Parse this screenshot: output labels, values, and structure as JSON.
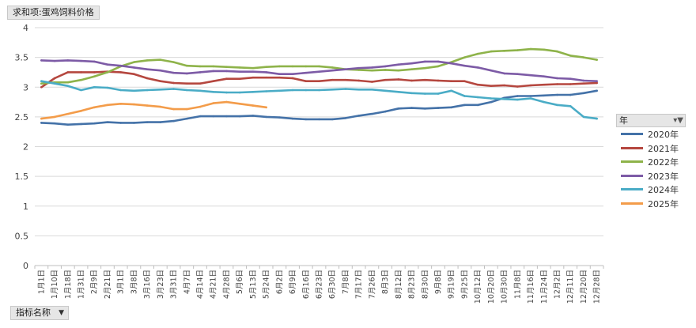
{
  "pivot": {
    "value_field": "求和项:蛋鸡饲料价格",
    "row_field": "指标名称",
    "row_field_dropdown": "▼",
    "legend_title": "年",
    "legend_filter_icon": "filter-dropdown-icon",
    "legend_filter_glyph": "▾▼"
  },
  "chart_data": {
    "type": "line",
    "title": "",
    "xlabel": "",
    "ylabel": "",
    "ylim": [
      0,
      4
    ],
    "yticks": [
      "0",
      "0.5",
      "1",
      "1.5",
      "2",
      "2.5",
      "3",
      "3.5",
      "4"
    ],
    "grid": true,
    "legend_position": "right",
    "x_tick_labels": [
      "1月1日",
      "1月10日",
      "1月18日",
      "1月31日",
      "2月9日",
      "2月21日",
      "3月1日",
      "3月8日",
      "3月16日",
      "3月23日",
      "3月31日",
      "4月7日",
      "4月14日",
      "4月21日",
      "4月28日",
      "5月6日",
      "5月13日",
      "5月24日",
      "6月2日",
      "6月9日",
      "6月16日",
      "6月23日",
      "6月30日",
      "7月8日",
      "7月17日",
      "7月26日",
      "8月3日",
      "8月12日",
      "8月23日",
      "8月30日",
      "9月8日",
      "9月19日",
      "9月25日",
      "10月12日",
      "10月20日",
      "10月30日",
      "11月8日",
      "11月16日",
      "11月24日",
      "12月2日",
      "12月11日",
      "12月20日",
      "12月28日"
    ],
    "series": [
      {
        "name": "2020年",
        "color": "#4472a8",
        "values": [
          2.4,
          2.39,
          2.37,
          2.38,
          2.39,
          2.41,
          2.4,
          2.4,
          2.41,
          2.41,
          2.43,
          2.47,
          2.51,
          2.51,
          2.51,
          2.51,
          2.52,
          2.5,
          2.49,
          2.47,
          2.46,
          2.46,
          2.46,
          2.48,
          2.52,
          2.55,
          2.59,
          2.64,
          2.65,
          2.64,
          2.65,
          2.66,
          2.7,
          2.7,
          2.75,
          2.82,
          2.85,
          2.85,
          2.86,
          2.87,
          2.87,
          2.9,
          2.94
        ]
      },
      {
        "name": "2021年",
        "color": "#b5473f",
        "values": [
          3.0,
          3.15,
          3.25,
          3.25,
          3.25,
          3.26,
          3.25,
          3.22,
          3.15,
          3.1,
          3.07,
          3.06,
          3.06,
          3.1,
          3.14,
          3.14,
          3.16,
          3.16,
          3.16,
          3.15,
          3.1,
          3.1,
          3.12,
          3.12,
          3.11,
          3.09,
          3.12,
          3.13,
          3.11,
          3.12,
          3.11,
          3.1,
          3.1,
          3.04,
          3.02,
          3.03,
          3.01,
          3.03,
          3.04,
          3.05,
          3.05,
          3.06,
          3.07
        ]
      },
      {
        "name": "2022年",
        "color": "#8eb34a",
        "values": [
          3.06,
          3.08,
          3.08,
          3.12,
          3.18,
          3.25,
          3.35,
          3.42,
          3.45,
          3.46,
          3.42,
          3.36,
          3.35,
          3.35,
          3.34,
          3.33,
          3.32,
          3.34,
          3.35,
          3.35,
          3.35,
          3.35,
          3.33,
          3.3,
          3.29,
          3.28,
          3.29,
          3.28,
          3.3,
          3.32,
          3.35,
          3.42,
          3.5,
          3.56,
          3.6,
          3.61,
          3.62,
          3.64,
          3.63,
          3.6,
          3.53,
          3.5,
          3.46
        ]
      },
      {
        "name": "2023年",
        "color": "#7d5ba6",
        "values": [
          3.45,
          3.44,
          3.45,
          3.44,
          3.43,
          3.38,
          3.36,
          3.33,
          3.3,
          3.28,
          3.24,
          3.23,
          3.25,
          3.27,
          3.27,
          3.26,
          3.26,
          3.25,
          3.22,
          3.22,
          3.24,
          3.26,
          3.28,
          3.3,
          3.32,
          3.33,
          3.35,
          3.38,
          3.4,
          3.43,
          3.43,
          3.4,
          3.36,
          3.33,
          3.28,
          3.23,
          3.22,
          3.2,
          3.18,
          3.15,
          3.14,
          3.11,
          3.1
        ]
      },
      {
        "name": "2024年",
        "color": "#4aacc6",
        "values": [
          3.1,
          3.06,
          3.02,
          2.95,
          3.0,
          2.99,
          2.95,
          2.94,
          2.95,
          2.96,
          2.97,
          2.95,
          2.94,
          2.92,
          2.91,
          2.91,
          2.92,
          2.93,
          2.94,
          2.95,
          2.95,
          2.95,
          2.96,
          2.97,
          2.96,
          2.96,
          2.94,
          2.92,
          2.9,
          2.89,
          2.89,
          2.94,
          2.85,
          2.83,
          2.81,
          2.8,
          2.79,
          2.81,
          2.75,
          2.7,
          2.68,
          2.5,
          2.47
        ]
      },
      {
        "name": "2025年",
        "color": "#f39c4a",
        "values": [
          2.47,
          2.5,
          2.55,
          2.6,
          2.66,
          2.7,
          2.72,
          2.71,
          2.69,
          2.67,
          2.63,
          2.63,
          2.67,
          2.73,
          2.75,
          2.72,
          2.69,
          2.66
        ]
      }
    ]
  }
}
